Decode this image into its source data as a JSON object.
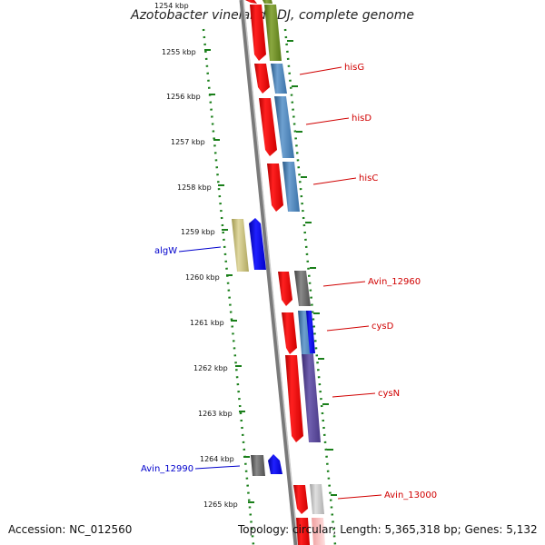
{
  "title": "Azotobacter vinelandii DJ, complete genome",
  "footer": {
    "accession": "Accession: NC_012560",
    "topology": "Topology: circular; Length: 5,365,318 bp; Genes: 5,132"
  },
  "ticks": [
    "1254 kbp",
    "1255 kbp",
    "1256 kbp",
    "1257 kbp",
    "1258 kbp",
    "1259 kbp",
    "1260 kbp",
    "1261 kbp",
    "1262 kbp",
    "1263 kbp",
    "1264 kbp",
    "1265 kbp"
  ],
  "genes": {
    "hisG": "hisG",
    "hisD": "hisD",
    "hisC": "hisC",
    "algW": "algW",
    "Avin_12960": "Avin_12960",
    "cysD": "cysD",
    "cysN": "cysN",
    "Avin_12990": "Avin_12990",
    "Avin_13000": "Avin_13000"
  },
  "colors": {
    "forward_red": "#ff0000",
    "reverse_blue": "#0000ff",
    "backbone": "#808080",
    "ticks": "#1a7f1a",
    "steel_blue": "#4682b4",
    "olive": "#6b8e23",
    "khaki": "#c8c080",
    "slate": "#5a4a90",
    "gray": "#606060"
  }
}
